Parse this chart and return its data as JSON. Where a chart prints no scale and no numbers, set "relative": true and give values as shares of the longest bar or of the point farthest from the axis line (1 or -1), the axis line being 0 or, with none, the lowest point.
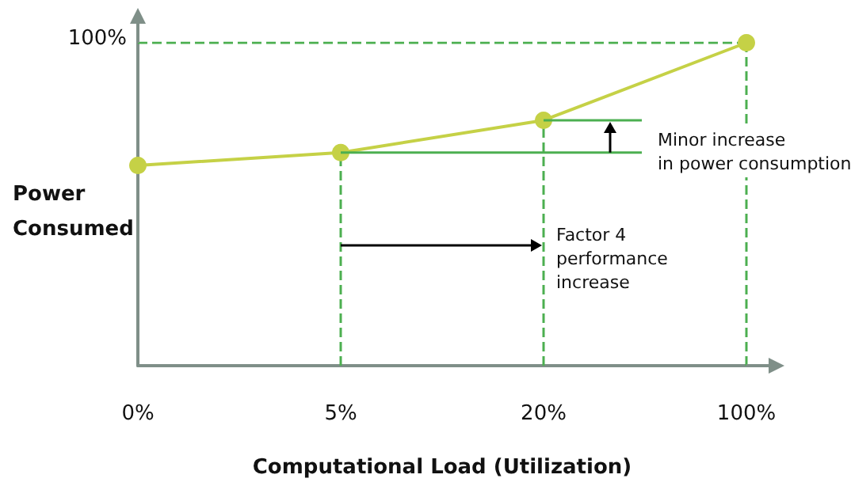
{
  "chart_data": {
    "type": "line",
    "relative": true,
    "xlabel": "Computational Load (Utilization)",
    "ylabel": "Power Consumed",
    "categories": [
      "0%",
      "5%",
      "20%",
      "100%"
    ],
    "series": [
      {
        "color": "#c5d146",
        "values": [
          0.62,
          0.66,
          0.76,
          1
        ]
      }
    ],
    "marker": "circle",
    "grid": false,
    "ref_lines": [
      {
        "axis": "y",
        "value": 1,
        "label": "100%",
        "color": "#4caf50",
        "line_style": "dashed"
      },
      {
        "axis": "x",
        "value": "5%",
        "label": null,
        "color": "#4caf50",
        "line_style": "dashed"
      },
      {
        "axis": "x",
        "value": "20%",
        "label": null,
        "color": "#4caf50",
        "line_style": "dashed"
      },
      {
        "axis": "x",
        "value": "100%",
        "label": null,
        "color": "#4caf50",
        "line_style": "dashed"
      }
    ],
    "annotations": [
      "Minor increase\nin power consumption",
      "Factor 4\nperformance\nincrease"
    ]
  }
}
